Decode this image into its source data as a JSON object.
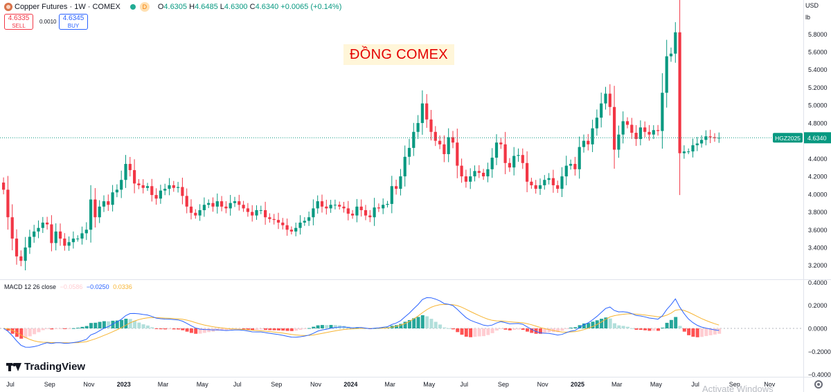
{
  "header": {
    "title": "Copper Futures · 1W · COMEX",
    "interval_badge": "D",
    "ohlc": {
      "o_label": "O",
      "o": "4.6305",
      "h_label": "H",
      "h": "4.6485",
      "l_label": "L",
      "l": "4.6300",
      "c_label": "C",
      "c": "4.6340",
      "change": "+0.0065 (+0.14%)"
    },
    "sell": {
      "price": "4.6335",
      "label": "SELL"
    },
    "buy": {
      "price": "4.6345",
      "label": "BUY"
    },
    "spread": "0.0010"
  },
  "overlay_title": "ĐỒNG COMEX",
  "currency": "USD",
  "unit": "lb",
  "branding": "TradingView",
  "watermark": "Activate Windows",
  "colors": {
    "up": "#089981",
    "down": "#f23645",
    "macd_line": "#2962ff",
    "signal_line": "#f7b432",
    "hist_up_strong": "#26a69a",
    "hist_up_weak": "#b2dfdb",
    "hist_down_strong": "#ff5252",
    "hist_down_weak": "#ffcdd2"
  },
  "chart_data": {
    "type": "candlestick",
    "price_axis": {
      "range": [
        3.05,
        5.95
      ],
      "ticks": [
        "5.8000",
        "5.6000",
        "5.4000",
        "5.2000",
        "5.0000",
        "4.8000",
        "4.6000",
        "4.4000",
        "4.2000",
        "4.0000",
        "3.8000",
        "3.6000",
        "3.4000",
        "3.2000"
      ],
      "last_price_label": "4.6340",
      "symbol_label": "HGZ2025",
      "last_price": 4.634
    },
    "time_axis": {
      "labels": [
        "Jul",
        "Sep",
        "Nov",
        "2023",
        "Mar",
        "May",
        "Jul",
        "Sep",
        "Nov",
        "2024",
        "Mar",
        "May",
        "Jul",
        "Sep",
        "Nov",
        "2025",
        "Mar",
        "May",
        "Jul",
        "Sep",
        "Nov"
      ],
      "week_index": [
        0,
        9,
        18,
        26,
        35,
        44,
        52,
        61,
        70,
        78,
        87,
        96,
        104,
        113,
        122,
        130,
        139,
        148,
        157,
        166,
        174
      ]
    },
    "closes": [
      4.05,
      3.74,
      3.5,
      3.3,
      3.25,
      3.4,
      3.52,
      3.58,
      3.62,
      3.68,
      3.66,
      3.45,
      3.58,
      3.5,
      3.42,
      3.46,
      3.5,
      3.5,
      3.56,
      3.6,
      3.94,
      3.74,
      3.86,
      3.92,
      3.88,
      4.02,
      4.05,
      4.16,
      4.34,
      4.27,
      4.12,
      4.1,
      4.07,
      4.09,
      3.99,
      3.95,
      4.04,
      4.06,
      4.1,
      4.07,
      4.08,
      3.98,
      3.86,
      3.79,
      3.76,
      3.82,
      3.88,
      3.9,
      3.86,
      3.92,
      3.86,
      3.84,
      3.9,
      3.92,
      3.88,
      3.84,
      3.8,
      3.76,
      3.82,
      3.82,
      3.74,
      3.72,
      3.71,
      3.68,
      3.65,
      3.6,
      3.58,
      3.62,
      3.68,
      3.7,
      3.74,
      3.84,
      3.92,
      3.86,
      3.84,
      3.88,
      3.88,
      3.86,
      3.84,
      3.78,
      3.76,
      3.86,
      3.82,
      3.76,
      3.74,
      3.85,
      3.84,
      3.88,
      3.89,
      4.09,
      4.06,
      4.2,
      4.42,
      4.52,
      4.7,
      4.8,
      5.02,
      4.84,
      4.7,
      4.6,
      4.56,
      4.45,
      4.64,
      4.58,
      4.32,
      4.2,
      4.14,
      4.2,
      4.26,
      4.24,
      4.2,
      4.28,
      4.41,
      4.58,
      4.56,
      4.35,
      4.3,
      4.43,
      4.44,
      4.35,
      4.14,
      4.1,
      4.06,
      4.1,
      4.16,
      4.18,
      4.1,
      4.06,
      4.2,
      4.32,
      4.34,
      4.28,
      4.53,
      4.6,
      4.56,
      4.74,
      4.86,
      5.02,
      5.13,
      4.98,
      4.5,
      4.67,
      4.82,
      4.78,
      4.69,
      4.62,
      4.75,
      4.7,
      4.67,
      4.72,
      4.71,
      5.14,
      5.55,
      5.58,
      5.82,
      4.46,
      4.48,
      4.48,
      4.55,
      4.57,
      4.61,
      4.65,
      4.64,
      4.63,
      4.634
    ],
    "macd": {
      "name": "MACD 12 26 close",
      "fast": 12,
      "slow": 26,
      "legend_values": [
        "−0.0586",
        "−0.0250",
        "0.0336"
      ],
      "axis_ticks": [
        "0.4000",
        "0.2000",
        "0.0000",
        "−0.2000",
        "−0.4000"
      ],
      "range": [
        -0.42,
        0.42
      ]
    }
  }
}
